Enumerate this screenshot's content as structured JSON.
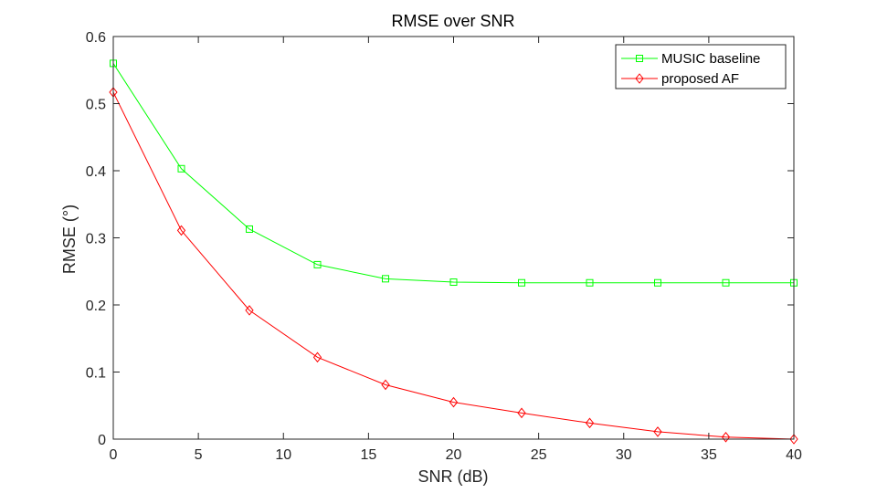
{
  "chart_data": {
    "type": "line",
    "title": "RMSE over SNR",
    "xlabel": "SNR (dB)",
    "ylabel": "RMSE (°)",
    "xlim": [
      0,
      40
    ],
    "ylim": [
      0,
      0.6
    ],
    "xticks": [
      0,
      5,
      10,
      15,
      20,
      25,
      30,
      35,
      40
    ],
    "yticks": [
      0,
      0.1,
      0.2,
      0.3,
      0.4,
      0.5,
      0.6
    ],
    "xtick_labels": [
      "0",
      "5",
      "10",
      "15",
      "20",
      "25",
      "30",
      "35",
      "40"
    ],
    "ytick_labels": [
      "0",
      "0.1",
      "0.2",
      "0.3",
      "0.4",
      "0.5",
      "0.6"
    ],
    "grid": false,
    "legend_position": "top-right",
    "x": [
      0,
      4,
      8,
      12,
      16,
      20,
      24,
      28,
      32,
      36,
      40
    ],
    "series": [
      {
        "name": "MUSIC baseline",
        "color": "#00ff00",
        "marker": "square",
        "values": [
          0.56,
          0.403,
          0.313,
          0.26,
          0.239,
          0.234,
          0.233,
          0.233,
          0.233,
          0.233,
          0.233
        ]
      },
      {
        "name": "proposed AF",
        "color": "#ff0000",
        "marker": "diamond",
        "values": [
          0.517,
          0.311,
          0.192,
          0.122,
          0.081,
          0.055,
          0.039,
          0.024,
          0.011,
          0.003,
          0.0
        ]
      }
    ]
  }
}
